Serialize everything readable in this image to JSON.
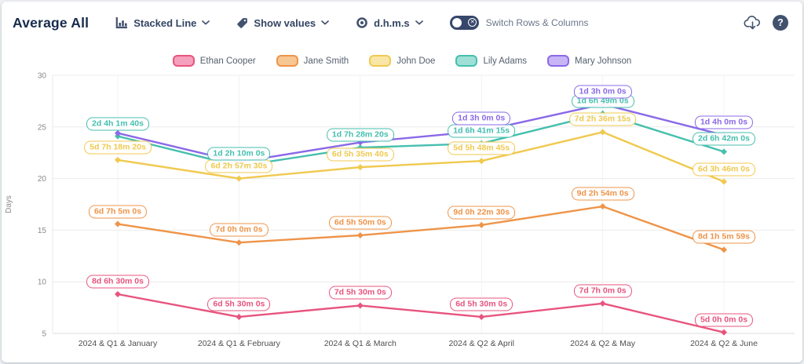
{
  "header": {
    "title": "Average All",
    "chart_type": {
      "icon": "bar-chart-icon",
      "label": "Stacked Line"
    },
    "show_values": {
      "icon": "tag-icon",
      "label": "Show values"
    },
    "time_format": {
      "icon": "eye-icon",
      "label": "d.h.m.s"
    },
    "switch_toggle": {
      "label": "Switch Rows & Columns",
      "state": "off",
      "knob_icon": "x-circle-icon"
    },
    "actions": {
      "download_icon": "cloud-download-icon",
      "help_icon": "question-mark-icon"
    }
  },
  "chart_data": {
    "type": "line",
    "selected_style": "Stacked Line",
    "value_format": "d.h.m.s",
    "title": "Average All",
    "xlabel": "",
    "ylabel": "Days",
    "ylim": [
      5,
      30
    ],
    "yticks": [
      5,
      10,
      15,
      20,
      25,
      30
    ],
    "grid": true,
    "legend_position": "top",
    "values_unit": "days",
    "categories": [
      "2024 & Q1 & January",
      "2024 & Q1 & February",
      "2024 & Q1 & March",
      "2024 & Q2 & April",
      "2024 & Q2 & May",
      "2024 & Q2 & June"
    ],
    "series": [
      {
        "name": "Ethan Cooper",
        "color": "#e8547e",
        "fill": "#f5a0bc",
        "values": [
          8.8,
          6.6,
          7.7,
          6.6,
          7.9,
          5.1
        ],
        "point_labels": [
          "8d 6h 30m 0s",
          "6d 5h 30m 0s",
          "7d 5h 30m 0s",
          "6d 5h 30m 0s",
          "7d 7h 0m 0s",
          "5d 0h 0m 0s"
        ]
      },
      {
        "name": "Jane Smith",
        "color": "#ee9449",
        "fill": "#f6c693",
        "values": [
          15.6,
          13.8,
          14.5,
          15.5,
          17.3,
          13.1
        ],
        "point_labels": [
          "6d 7h 5m 0s",
          "7d 0h 0m 0s",
          "6d 5h 50m 0s",
          "9d 0h 22m 30s",
          "9d 2h 54m 0s",
          "8d 1h 5m 59s"
        ]
      },
      {
        "name": "John Doe",
        "color": "#f0c94f",
        "fill": "#f9e6a6",
        "values": [
          21.8,
          20.0,
          21.1,
          21.7,
          24.5,
          19.7
        ],
        "point_labels": [
          "5d 7h 18m 20s",
          "6d 2h 57m 30s",
          "6d 5h 35m 40s",
          "5d 5h 48m 45s",
          "7d 2h 36m 15s",
          "6d 3h 46m 0s"
        ]
      },
      {
        "name": "Lily Adams",
        "color": "#45bfae",
        "fill": "#9fe0d6",
        "values": [
          24.1,
          21.2,
          23.0,
          23.4,
          26.3,
          22.6
        ],
        "point_labels": [
          "2d 4h 1m 40s",
          "1d 2h 10m 0s",
          "1d 7h 28m 20s",
          "1d 6h 41m 15s",
          "1d 6h 49m 0s",
          "2d 6h 42m 0s"
        ]
      },
      {
        "name": "Mary Johnson",
        "color": "#8b69e8",
        "fill": "#c8b5f5",
        "values": [
          24.4,
          21.6,
          23.5,
          24.6,
          27.2,
          24.2
        ],
        "point_labels": [
          null,
          null,
          null,
          "1d 3h 0m 0s",
          "1d 3h 0m 0s",
          "1d 4h 0m 0s"
        ]
      }
    ]
  }
}
